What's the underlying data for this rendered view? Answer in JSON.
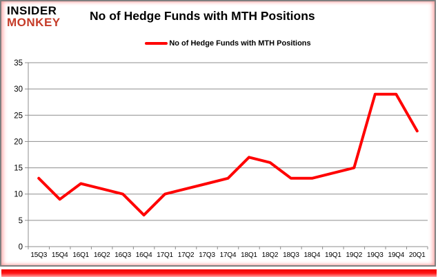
{
  "header": {
    "logo_line1": "INSIDER",
    "logo_line2": "MONKEY",
    "title": "No of Hedge Funds with MTH Positions"
  },
  "legend": {
    "label": "No of Hedge Funds with MTH Positions",
    "color": "#ff0000"
  },
  "chart_data": {
    "type": "line",
    "title": "No of Hedge Funds with MTH Positions",
    "categories": [
      "15Q3",
      "15Q4",
      "16Q1",
      "16Q2",
      "16Q3",
      "16Q4",
      "17Q1",
      "17Q2",
      "17Q3",
      "17Q4",
      "18Q1",
      "18Q2",
      "18Q3",
      "18Q4",
      "19Q1",
      "19Q2",
      "19Q3",
      "19Q4",
      "20Q1"
    ],
    "series": [
      {
        "name": "No of Hedge Funds with MTH Positions",
        "color": "#ff0000",
        "values": [
          13,
          9,
          12,
          11,
          10,
          6,
          10,
          11,
          12,
          13,
          17,
          16,
          13,
          13,
          14,
          15,
          29,
          29,
          22
        ]
      }
    ],
    "xlabel": "",
    "ylabel": "",
    "ylim": [
      0,
      35
    ],
    "yticks": [
      0,
      5,
      10,
      15,
      20,
      25,
      30,
      35
    ],
    "grid": true,
    "legend_position": "top-center"
  },
  "colors": {
    "line": "#ff0000",
    "logo_red": "#c53b28",
    "grid": "#8c8c8c",
    "axis": "#8c8c8c",
    "frame": "#7f7f7f",
    "bottom_bar": "#ff0000",
    "text": "#000000"
  }
}
